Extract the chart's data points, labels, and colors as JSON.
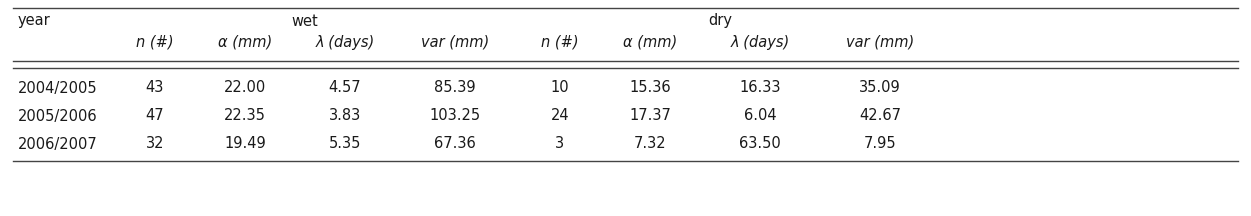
{
  "years": [
    "2004/2005",
    "2005/2006",
    "2006/2007"
  ],
  "wet": {
    "n": [
      "43",
      "47",
      "32"
    ],
    "alpha": [
      "22.00",
      "22.35",
      "19.49"
    ],
    "lambda": [
      "4.57",
      "3.83",
      "5.35"
    ],
    "var": [
      "85.39",
      "103.25",
      "67.36"
    ]
  },
  "dry": {
    "n": [
      "10",
      "24",
      "3"
    ],
    "alpha": [
      "15.36",
      "17.37",
      "7.32"
    ],
    "lambda": [
      "16.33",
      "6.04",
      "63.50"
    ],
    "var": [
      "35.09",
      "42.67",
      "7.95"
    ]
  },
  "col_headers": [
    "n (#)",
    "α (mm)",
    "λ (days)",
    "var (mm)",
    "n (#)",
    "α (mm)",
    "λ (days)",
    "var (mm)"
  ],
  "group_headers": [
    "year",
    "wet",
    "dry"
  ],
  "bg_color": "#ffffff",
  "text_color": "#1a1a1a",
  "line_color": "#444444",
  "font_size": 10.5
}
